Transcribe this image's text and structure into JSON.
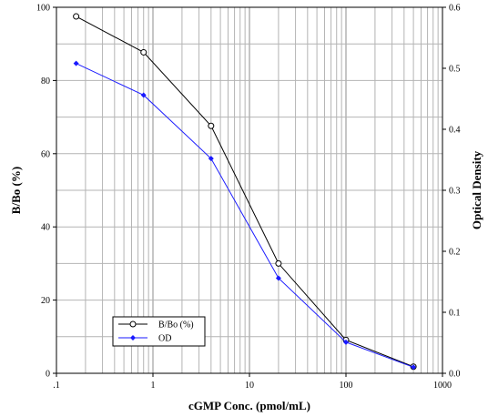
{
  "chart_data": {
    "type": "line",
    "xlabel": "cGMP Conc. (pmol/mL)",
    "ylabel": "B/Bo (%)",
    "y2label": "Optical Density",
    "xscale": "log",
    "xlim": [
      0.1,
      1000
    ],
    "ylim": [
      0,
      100
    ],
    "y2lim": [
      0,
      0.6
    ],
    "grid": true,
    "legend_position": "bottom-left",
    "x_tick_labels": [
      ".1",
      "1",
      "10",
      "100",
      "1000"
    ],
    "y_tick_labels": [
      "0",
      "20",
      "40",
      "60",
      "80",
      "100"
    ],
    "y2_tick_labels": [
      "0.0",
      "0.1",
      "0.2",
      "0.3",
      "0.4",
      "0.5",
      "0.6"
    ],
    "series": [
      {
        "name": "B/Bo (%)",
        "axis": "left",
        "marker": "open-circle",
        "color": "#000000",
        "x": [
          0.16,
          0.8,
          4,
          20,
          100,
          500
        ],
        "y": [
          97.5,
          87.7,
          67.6,
          30.0,
          9.1,
          1.8
        ]
      },
      {
        "name": "OD",
        "axis": "right",
        "marker": "filled-diamond",
        "color": "#1a1aff",
        "x": [
          0.16,
          0.8,
          4,
          20,
          100,
          500
        ],
        "y": [
          0.508,
          0.456,
          0.352,
          0.156,
          0.051,
          0.01
        ]
      }
    ]
  }
}
